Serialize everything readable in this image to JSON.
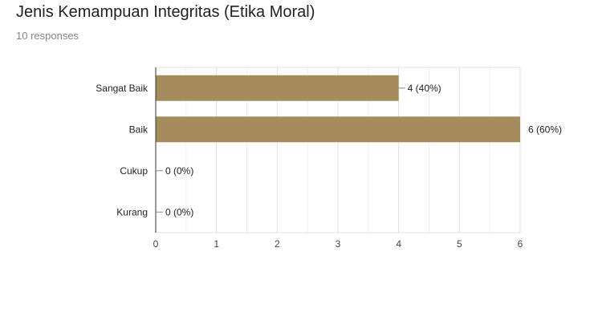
{
  "title": "Jenis Kemampuan Integritas (Etika Moral)",
  "subtitle": "10 responses",
  "chart_data": {
    "type": "bar",
    "orientation": "horizontal",
    "categories": [
      "Sangat Baik",
      "Baik",
      "Cukup",
      "Kurang"
    ],
    "values": [
      4,
      6,
      0,
      0
    ],
    "data_labels": [
      "4 (40%)",
      "6 (60%)",
      "0 (0%)",
      "0 (0%)"
    ],
    "xlim": [
      0,
      6
    ],
    "xticks": [
      0,
      1,
      2,
      3,
      4,
      5,
      6
    ],
    "grid": true,
    "bar_color": "#a58c5f",
    "legend": "none"
  }
}
